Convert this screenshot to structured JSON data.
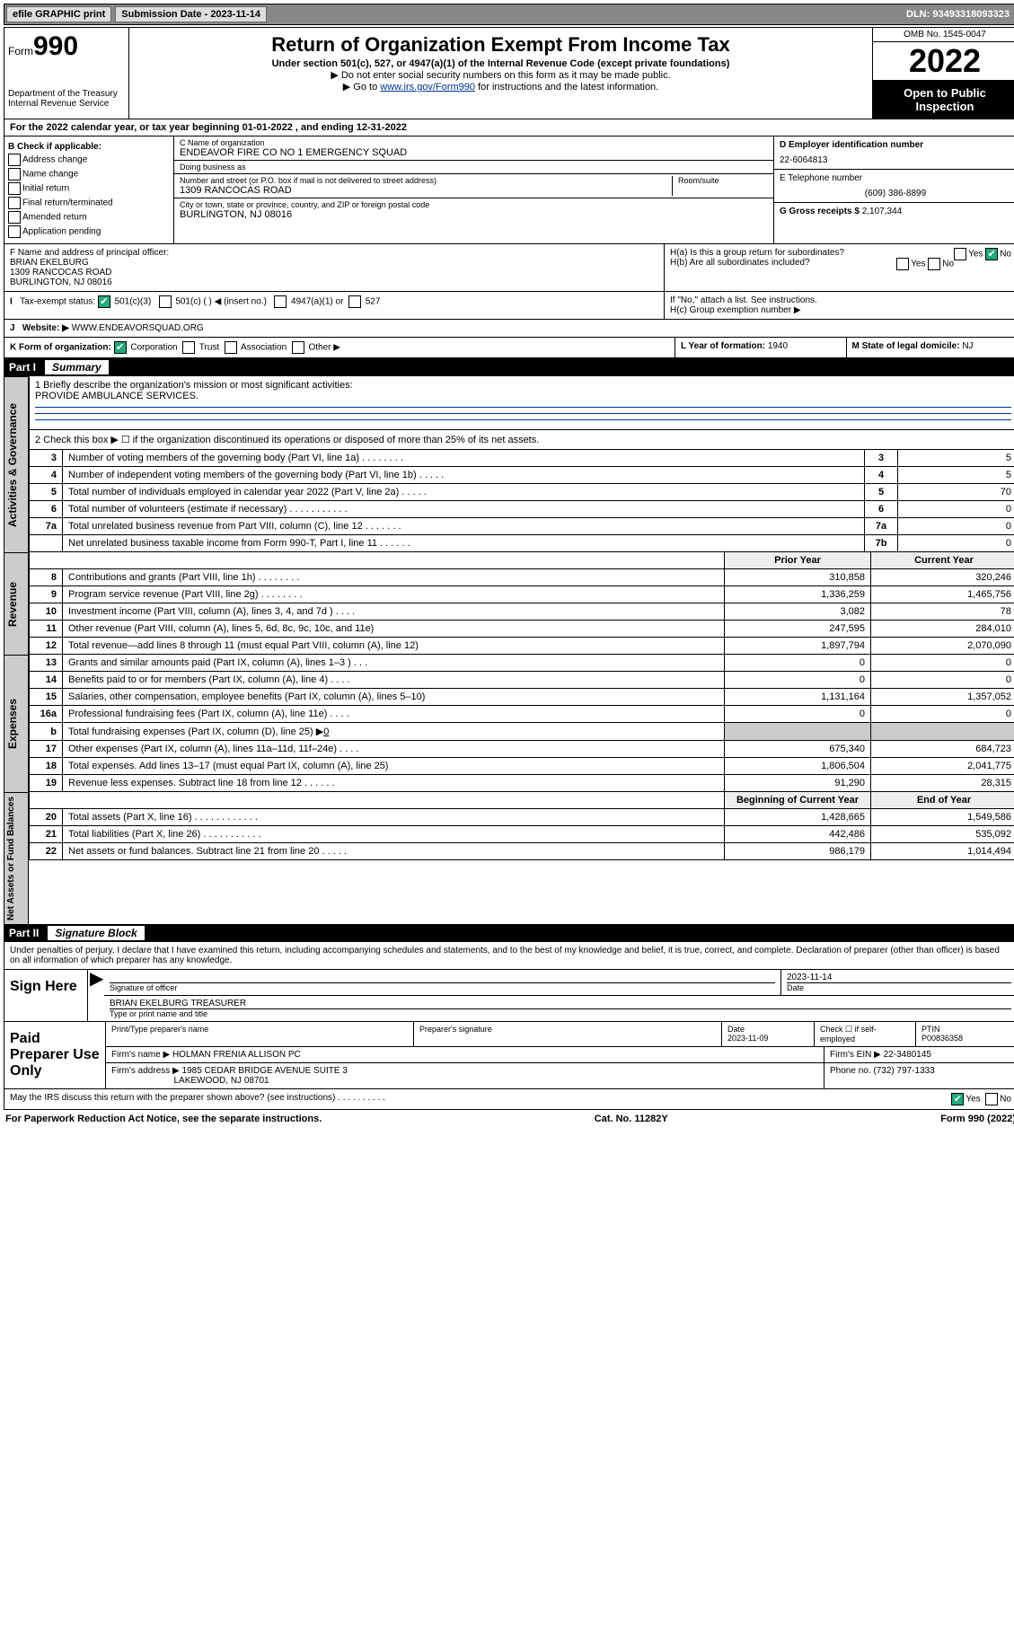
{
  "topbar": {
    "efile": "efile GRAPHIC print",
    "submission_label": "Submission Date - 2023-11-14",
    "dln": "DLN: 93493318093323"
  },
  "header": {
    "form_prefix": "Form",
    "form_num": "990",
    "dept": "Department of the Treasury",
    "irs": "Internal Revenue Service",
    "title": "Return of Organization Exempt From Income Tax",
    "subtitle": "Under section 501(c), 527, or 4947(a)(1) of the Internal Revenue Code (except private foundations)",
    "note1": "▶ Do not enter social security numbers on this form as it may be made public.",
    "note2_pre": "▶ Go to ",
    "note2_link": "www.irs.gov/Form990",
    "note2_post": " for instructions and the latest information.",
    "omb": "OMB No. 1545-0047",
    "year": "2022",
    "inspect": "Open to Public Inspection"
  },
  "line_a": "For the 2022 calendar year, or tax year beginning 01-01-2022   , and ending 12-31-2022",
  "box_b": {
    "header": "B Check if applicable:",
    "opts": [
      "Address change",
      "Name change",
      "Initial return",
      "Final return/terminated",
      "Amended return",
      "Application pending"
    ]
  },
  "box_c": {
    "name_lbl": "C Name of organization",
    "name": "ENDEAVOR FIRE CO NO 1 EMERGENCY SQUAD",
    "dba_lbl": "Doing business as",
    "dba": "",
    "street_lbl": "Number and street (or P.O. box if mail is not delivered to street address)",
    "room_lbl": "Room/suite",
    "street": "1309 RANCOCAS ROAD",
    "city_lbl": "City or town, state or province, country, and ZIP or foreign postal code",
    "city": "BURLINGTON, NJ  08016"
  },
  "box_d": {
    "lbl": "D Employer identification number",
    "val": "22-6064813"
  },
  "box_e": {
    "lbl": "E Telephone number",
    "val": "(609) 386-8899"
  },
  "box_g": {
    "lbl": "G Gross receipts $",
    "val": "2,107,344"
  },
  "box_f": {
    "lbl": "F Name and address of principal officer:",
    "name": "BRIAN EKELBURG",
    "addr1": "1309 RANCOCAS ROAD",
    "addr2": "BURLINGTON, NJ  08016"
  },
  "box_h": {
    "ha": "H(a)  Is this a group return for subordinates?",
    "ha_yes": "Yes",
    "ha_no": "No",
    "hb": "H(b)  Are all subordinates included?",
    "hb_yes": "Yes",
    "hb_no": "No",
    "hb_note": "If \"No,\" attach a list. See instructions.",
    "hc": "H(c)  Group exemption number ▶"
  },
  "box_i": {
    "lbl": "Tax-exempt status:",
    "o1": "501(c)(3)",
    "o2": "501(c) (  ) ◀ (insert no.)",
    "o3": "4947(a)(1) or",
    "o4": "527"
  },
  "box_j": {
    "lbl": "Website: ▶",
    "val": "WWW.ENDEAVORSQUAD.ORG"
  },
  "box_k": {
    "lbl": "K Form of organization:",
    "o1": "Corporation",
    "o2": "Trust",
    "o3": "Association",
    "o4": "Other ▶"
  },
  "box_l": {
    "lbl": "L Year of formation:",
    "val": "1940"
  },
  "box_m": {
    "lbl": "M State of legal domicile:",
    "val": "NJ"
  },
  "part1": {
    "num": "Part I",
    "title": "Summary"
  },
  "mission": {
    "q": "1   Briefly describe the organization's mission or most significant activities:",
    "a": "PROVIDE AMBULANCE SERVICES."
  },
  "line2": "2    Check this box ▶ ☐  if the organization discontinued its operations or disposed of more than 25% of its net assets.",
  "governance_label": "Activities & Governance",
  "gov_rows": [
    {
      "n": "3",
      "d": "Number of voting members of the governing body (Part VI, line 1a)   .    .    .    .    .    .    .    .",
      "box": "3",
      "v": "5"
    },
    {
      "n": "4",
      "d": "Number of independent voting members of the governing body (Part VI, line 1b)    .    .    .    .    .",
      "box": "4",
      "v": "5"
    },
    {
      "n": "5",
      "d": "Total number of individuals employed in calendar year 2022 (Part V, line 2a)    .    .    .    .    .",
      "box": "5",
      "v": "70"
    },
    {
      "n": "6",
      "d": "Total number of volunteers (estimate if necessary)    .    .    .    .    .    .    .    .    .    .    .",
      "box": "6",
      "v": "0"
    },
    {
      "n": "7a",
      "d": "Total unrelated business revenue from Part VIII, column (C), line 12    .    .    .    .    .    .    .",
      "box": "7a",
      "v": "0"
    },
    {
      "n": "",
      "d": "Net unrelated business taxable income from Form 990-T, Part I, line 11    .    .    .    .    .    .",
      "box": "7b",
      "v": "0"
    }
  ],
  "rev_label": "Revenue",
  "rev_hdr": {
    "prior": "Prior Year",
    "curr": "Current Year"
  },
  "rev_rows": [
    {
      "n": "8",
      "d": "Contributions and grants (Part VIII, line 1h)    .    .    .    .    .    .    .    .",
      "p": "310,858",
      "c": "320,246"
    },
    {
      "n": "9",
      "d": "Program service revenue (Part VIII, line 2g)    .    .    .    .    .    .    .    .",
      "p": "1,336,259",
      "c": "1,465,756"
    },
    {
      "n": "10",
      "d": "Investment income (Part VIII, column (A), lines 3, 4, and 7d )    .    .    .    .",
      "p": "3,082",
      "c": "78"
    },
    {
      "n": "11",
      "d": "Other revenue (Part VIII, column (A), lines 5, 6d, 8c, 9c, 10c, and 11e)",
      "p": "247,595",
      "c": "284,010"
    },
    {
      "n": "12",
      "d": "Total revenue—add lines 8 through 11 (must equal Part VIII, column (A), line 12)",
      "p": "1,897,794",
      "c": "2,070,090"
    }
  ],
  "exp_label": "Expenses",
  "exp_rows": [
    {
      "n": "13",
      "d": "Grants and similar amounts paid (Part IX, column (A), lines 1–3 )    .    .    .",
      "p": "0",
      "c": "0"
    },
    {
      "n": "14",
      "d": "Benefits paid to or for members (Part IX, column (A), line 4)    .    .    .    .",
      "p": "0",
      "c": "0"
    },
    {
      "n": "15",
      "d": "Salaries, other compensation, employee benefits (Part IX, column (A), lines 5–10)",
      "p": "1,131,164",
      "c": "1,357,052"
    },
    {
      "n": "16a",
      "d": "Professional fundraising fees (Part IX, column (A), line 11e)    .    .    .    .",
      "p": "0",
      "c": "0"
    }
  ],
  "line16b": {
    "n": "b",
    "d": "Total fundraising expenses (Part IX, column (D), line 25) ▶",
    "v": "0"
  },
  "exp_rows2": [
    {
      "n": "17",
      "d": "Other expenses (Part IX, column (A), lines 11a–11d, 11f–24e)    .    .    .    .",
      "p": "675,340",
      "c": "684,723"
    },
    {
      "n": "18",
      "d": "Total expenses. Add lines 13–17 (must equal Part IX, column (A), line 25)",
      "p": "1,806,504",
      "c": "2,041,775"
    },
    {
      "n": "19",
      "d": "Revenue less expenses. Subtract line 18 from line 12    .    .    .    .    .    .",
      "p": "91,290",
      "c": "28,315"
    }
  ],
  "na_label": "Net Assets or Fund Balances",
  "na_hdr": {
    "b": "Beginning of Current Year",
    "e": "End of Year"
  },
  "na_rows": [
    {
      "n": "20",
      "d": "Total assets (Part X, line 16)    .    .    .    .    .    .    .    .    .    .    .    .",
      "p": "1,428,665",
      "c": "1,549,586"
    },
    {
      "n": "21",
      "d": "Total liabilities (Part X, line 26)    .    .    .    .    .    .    .    .    .    .    .",
      "p": "442,486",
      "c": "535,092"
    },
    {
      "n": "22",
      "d": "Net assets or fund balances. Subtract line 21 from line 20    .    .    .    .    .",
      "p": "986,179",
      "c": "1,014,494"
    }
  ],
  "part2": {
    "num": "Part II",
    "title": "Signature Block"
  },
  "penalty": "Under penalties of perjury, I declare that I have examined this return, including accompanying schedules and statements, and to the best of my knowledge and belief, it is true, correct, and complete. Declaration of preparer (other than officer) is based on all information of which preparer has any knowledge.",
  "sign": {
    "lbl": "Sign Here",
    "sig_lbl": "Signature of officer",
    "date_lbl": "Date",
    "date": "2023-11-14",
    "name": "BRIAN EKELBURG  TREASURER",
    "name_lbl": "Type or print name and title"
  },
  "preparer": {
    "lbl": "Paid Preparer Use Only",
    "h1": "Print/Type preparer's name",
    "h2": "Preparer's signature",
    "h3": "Date",
    "date": "2023-11-09",
    "h4": "Check ☐ if self-employed",
    "h5": "PTIN",
    "ptin": "P00836358",
    "firm_lbl": "Firm's name    ▶",
    "firm": "HOLMAN FRENIA ALLISON PC",
    "ein_lbl": "Firm's EIN ▶",
    "ein": "22-3480145",
    "addr_lbl": "Firm's address ▶",
    "addr1": "1985 CEDAR BRIDGE AVENUE SUITE 3",
    "addr2": "LAKEWOOD, NJ  08701",
    "phone_lbl": "Phone no.",
    "phone": "(732) 797-1333"
  },
  "discuss": {
    "q": "May the IRS discuss this return with the preparer shown above? (see instructions)    .    .    .    .    .    .    .    .    .    .",
    "yes": "Yes",
    "no": "No"
  },
  "footer": {
    "l": "For Paperwork Reduction Act Notice, see the separate instructions.",
    "c": "Cat. No. 11282Y",
    "r": "Form 990 (2022)"
  }
}
